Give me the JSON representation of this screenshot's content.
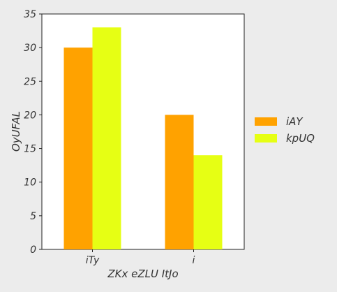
{
  "chart_data": {
    "type": "bar",
    "categories": [
      "iTy",
      "i"
    ],
    "series": [
      {
        "name": "iAY",
        "values": [
          30,
          20
        ],
        "color": "#ffa200"
      },
      {
        "name": "kpUQ",
        "values": [
          33,
          14
        ],
        "color": "#e6ff14"
      }
    ],
    "xlabel": "ZKx eZLU ItJo",
    "ylabel": "OyUFAL",
    "ylim": [
      0,
      35
    ],
    "yticks": [
      0,
      5,
      10,
      15,
      20,
      25,
      30,
      35
    ],
    "grid": false,
    "legend_position": "right"
  }
}
